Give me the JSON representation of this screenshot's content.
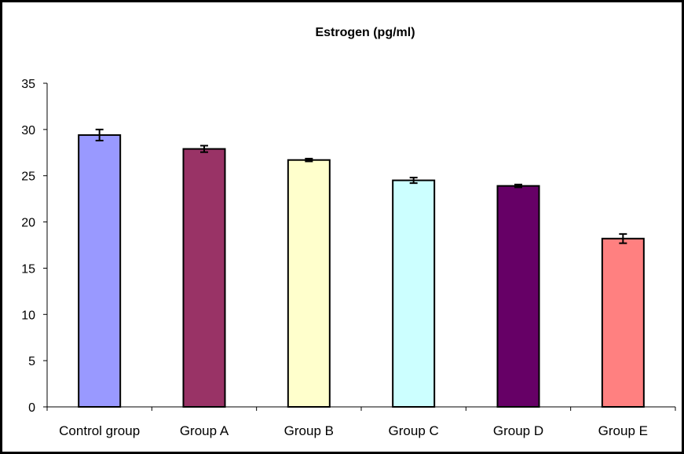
{
  "chart_data": {
    "type": "bar",
    "title": "Estrogen (pg/ml)",
    "xlabel": "",
    "ylabel": "",
    "ylim": [
      0,
      35
    ],
    "yticks": [
      0,
      5,
      10,
      15,
      20,
      25,
      30,
      35
    ],
    "categories": [
      "Control group",
      "Group A",
      "Group B",
      "Group C",
      "Group D",
      "Group E"
    ],
    "values": [
      29.4,
      27.9,
      26.7,
      24.5,
      23.9,
      18.2
    ],
    "errors": [
      0.6,
      0.35,
      0.15,
      0.3,
      0.15,
      0.5
    ],
    "colors": [
      "#9999FF",
      "#993366",
      "#FFFFCC",
      "#CCFFFF",
      "#660066",
      "#FF8080"
    ],
    "grid": false,
    "legend": "none"
  }
}
